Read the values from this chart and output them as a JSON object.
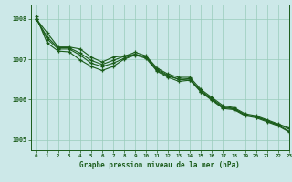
{
  "xlabel": "Graphe pression niveau de la mer (hPa)",
  "ylim": [
    1004.75,
    1008.35
  ],
  "xlim": [
    -0.5,
    23
  ],
  "yticks": [
    1005,
    1006,
    1007,
    1008
  ],
  "xticks": [
    0,
    1,
    2,
    3,
    4,
    5,
    6,
    7,
    8,
    9,
    10,
    11,
    12,
    13,
    14,
    15,
    16,
    17,
    18,
    19,
    20,
    21,
    22,
    23
  ],
  "bg_color": "#cce8e8",
  "line_color": "#1a5c1a",
  "grid_color": "#99ccbb",
  "series": [
    [
      1008.0,
      1007.65,
      1007.3,
      1007.3,
      1007.25,
      1007.05,
      1006.93,
      1007.05,
      1007.08,
      1007.12,
      1007.05,
      1006.72,
      1006.58,
      1006.5,
      1006.48,
      1006.22,
      1006.02,
      1005.82,
      1005.78,
      1005.62,
      1005.58,
      1005.48,
      1005.38,
      1005.28
    ],
    [
      1008.0,
      1007.55,
      1007.28,
      1007.28,
      1007.15,
      1006.97,
      1006.87,
      1006.97,
      1007.07,
      1007.17,
      1007.08,
      1006.78,
      1006.63,
      1006.55,
      1006.55,
      1006.25,
      1006.05,
      1005.85,
      1005.8,
      1005.65,
      1005.6,
      1005.5,
      1005.4,
      1005.3
    ],
    [
      1008.0,
      1007.5,
      1007.25,
      1007.25,
      1007.1,
      1006.9,
      1006.82,
      1006.9,
      1007.02,
      1007.12,
      1007.05,
      1006.75,
      1006.6,
      1006.5,
      1006.52,
      1006.2,
      1006.0,
      1005.8,
      1005.77,
      1005.62,
      1005.57,
      1005.47,
      1005.37,
      1005.22
    ],
    [
      1008.05,
      1007.4,
      1007.2,
      1007.18,
      1006.98,
      1006.82,
      1006.72,
      1006.82,
      1007.0,
      1007.1,
      1007.02,
      1006.7,
      1006.55,
      1006.45,
      1006.48,
      1006.18,
      1005.98,
      1005.78,
      1005.75,
      1005.6,
      1005.55,
      1005.45,
      1005.35,
      1005.2
    ]
  ]
}
